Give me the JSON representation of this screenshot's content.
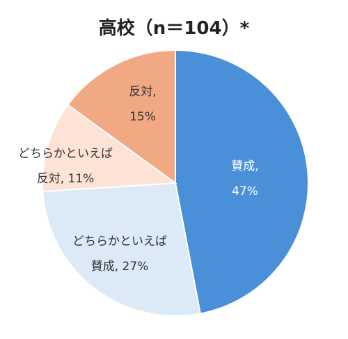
{
  "chart_data": {
    "type": "pie",
    "title": "高校（n＝104）*",
    "start": "12 o'clock, clockwise",
    "slices": [
      {
        "label_line1": "賛成,",
        "label_line2": "47%",
        "value": 47,
        "color": "#4a90d9",
        "text_color": "#ffffff"
      },
      {
        "label_line1": "どちらかといえば",
        "label_line2": "賛成, 27%",
        "value": 27,
        "color": "#dce9f7",
        "text_color": "#333333"
      },
      {
        "label_line1": "どちらかといえば",
        "label_line2": "反対, 11%",
        "value": 11,
        "color": "#fde2d6",
        "text_color": "#333333"
      },
      {
        "label_line1": "反対,",
        "label_line2": "15%",
        "value": 15,
        "color": "#f0a983",
        "text_color": "#333333"
      }
    ]
  }
}
